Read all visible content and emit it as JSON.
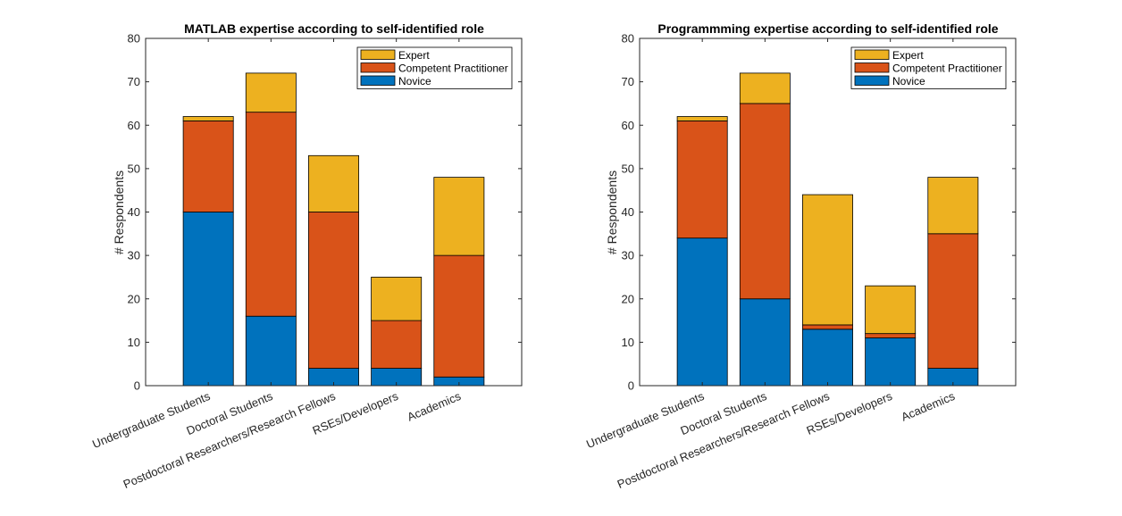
{
  "colors": {
    "novice": "#0072BD",
    "competent": "#D95319",
    "expert": "#EDB120",
    "axis": "#262626",
    "background": "#FFFFFF"
  },
  "chart_data": [
    {
      "type": "bar",
      "stacked": true,
      "title": "MATLAB expertise according to self-identified role",
      "xlabel": "",
      "ylabel": "# Respondents",
      "ylim": [
        0,
        80
      ],
      "yticks": [
        "0",
        "10",
        "20",
        "30",
        "40",
        "50",
        "60",
        "70",
        "80"
      ],
      "grid": false,
      "legend_position": "top-right",
      "categories": [
        "Undergraduate Students",
        "Doctoral Students",
        "Postdoctoral Researchers/Research Fellows",
        "RSEs/Developers",
        "Academics"
      ],
      "series": [
        {
          "name": "Novice",
          "color": "#0072BD",
          "values": [
            40,
            16,
            4,
            4,
            2
          ]
        },
        {
          "name": "Competent Practitioner",
          "color": "#D95319",
          "values": [
            21,
            47,
            36,
            11,
            28
          ]
        },
        {
          "name": "Expert",
          "color": "#EDB120",
          "values": [
            1,
            9,
            13,
            10,
            18
          ]
        }
      ],
      "legend_order": [
        "Expert",
        "Competent Practitioner",
        "Novice"
      ]
    },
    {
      "type": "bar",
      "stacked": true,
      "title": "Programmming expertise according to self-identified role",
      "xlabel": "",
      "ylabel": "# Respondents",
      "ylim": [
        0,
        80
      ],
      "yticks": [
        "0",
        "10",
        "20",
        "30",
        "40",
        "50",
        "60",
        "70",
        "80"
      ],
      "grid": false,
      "legend_position": "top-right",
      "categories": [
        "Undergraduate Students",
        "Doctoral Students",
        "Postdoctoral Researchers/Research Fellows",
        "RSEs/Developers",
        "Academics"
      ],
      "series": [
        {
          "name": "Novice",
          "color": "#0072BD",
          "values": [
            34,
            20,
            13,
            11,
            4
          ]
        },
        {
          "name": "Competent Practitioner",
          "color": "#D95319",
          "values": [
            27,
            45,
            1,
            1,
            31
          ]
        },
        {
          "name": "Expert",
          "color": "#EDB120",
          "values": [
            1,
            7,
            30,
            11,
            13
          ]
        }
      ],
      "legend_order": [
        "Expert",
        "Competent Practitioner",
        "Novice"
      ]
    }
  ]
}
